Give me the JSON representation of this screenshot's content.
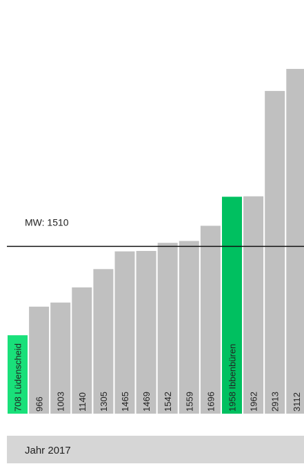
{
  "chart_data": {
    "type": "bar",
    "categories": [
      null,
      null,
      null,
      null,
      null,
      null,
      null,
      null,
      null,
      null,
      null,
      null,
      null,
      null
    ],
    "values": [
      708,
      966,
      1003,
      1140,
      1305,
      1465,
      1469,
      1542,
      1559,
      1696,
      1958,
      1962,
      2913,
      3112
    ],
    "value_labels": [
      "708 Lüdenscheid",
      "966",
      "1003",
      "1140",
      "1305",
      "1465",
      "1469",
      "1542",
      "1559",
      "1696",
      "1958 Ibbenbüren",
      "1962",
      "2913",
      "3112"
    ],
    "colors": [
      "#19e07a",
      "#c0c0c0",
      "#c0c0c0",
      "#c0c0c0",
      "#c0c0c0",
      "#c0c0c0",
      "#c0c0c0",
      "#c0c0c0",
      "#c0c0c0",
      "#c0c0c0",
      "#00c060",
      "#c0c0c0",
      "#c0c0c0",
      "#c0c0c0"
    ],
    "ylim": [
      0,
      3734
    ],
    "mean": {
      "value": 1510,
      "label": "MW: 1510"
    },
    "footer": "Jahr 2017"
  }
}
